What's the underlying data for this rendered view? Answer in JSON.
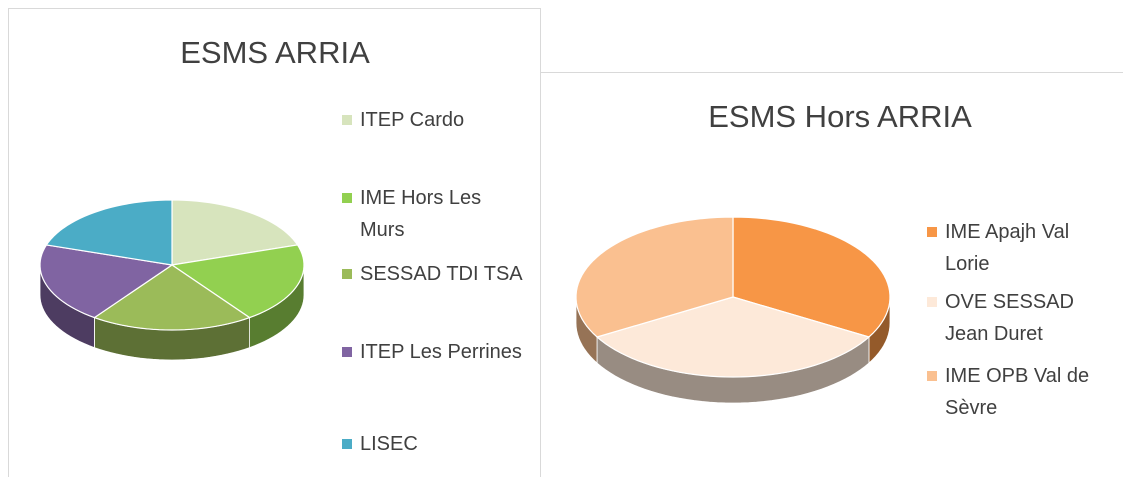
{
  "chart_data": [
    {
      "type": "pie",
      "title": "ESMS ARRIA",
      "categories": [
        "ITEP Cardo",
        "IME Hors Les Murs",
        "SESSAD TDI TSA",
        "ITEP Les Perrines",
        "LISEC"
      ],
      "values": [
        20,
        20,
        20,
        20,
        20
      ],
      "colors": [
        "#d7e4bd",
        "#92d050",
        "#9bbb59",
        "#8064a2",
        "#4bacc6"
      ],
      "legend": "right"
    },
    {
      "type": "pie",
      "title": "ESMS Hors ARRIA",
      "categories": [
        "IME Apajh Val Lorie",
        "OVE SESSAD Jean Duret",
        "IME OPB Val de Sèvre"
      ],
      "values": [
        33.3,
        33.3,
        33.3
      ],
      "colors": [
        "#f79646",
        "#fde9d9",
        "#fac090"
      ],
      "legend": "right"
    }
  ]
}
